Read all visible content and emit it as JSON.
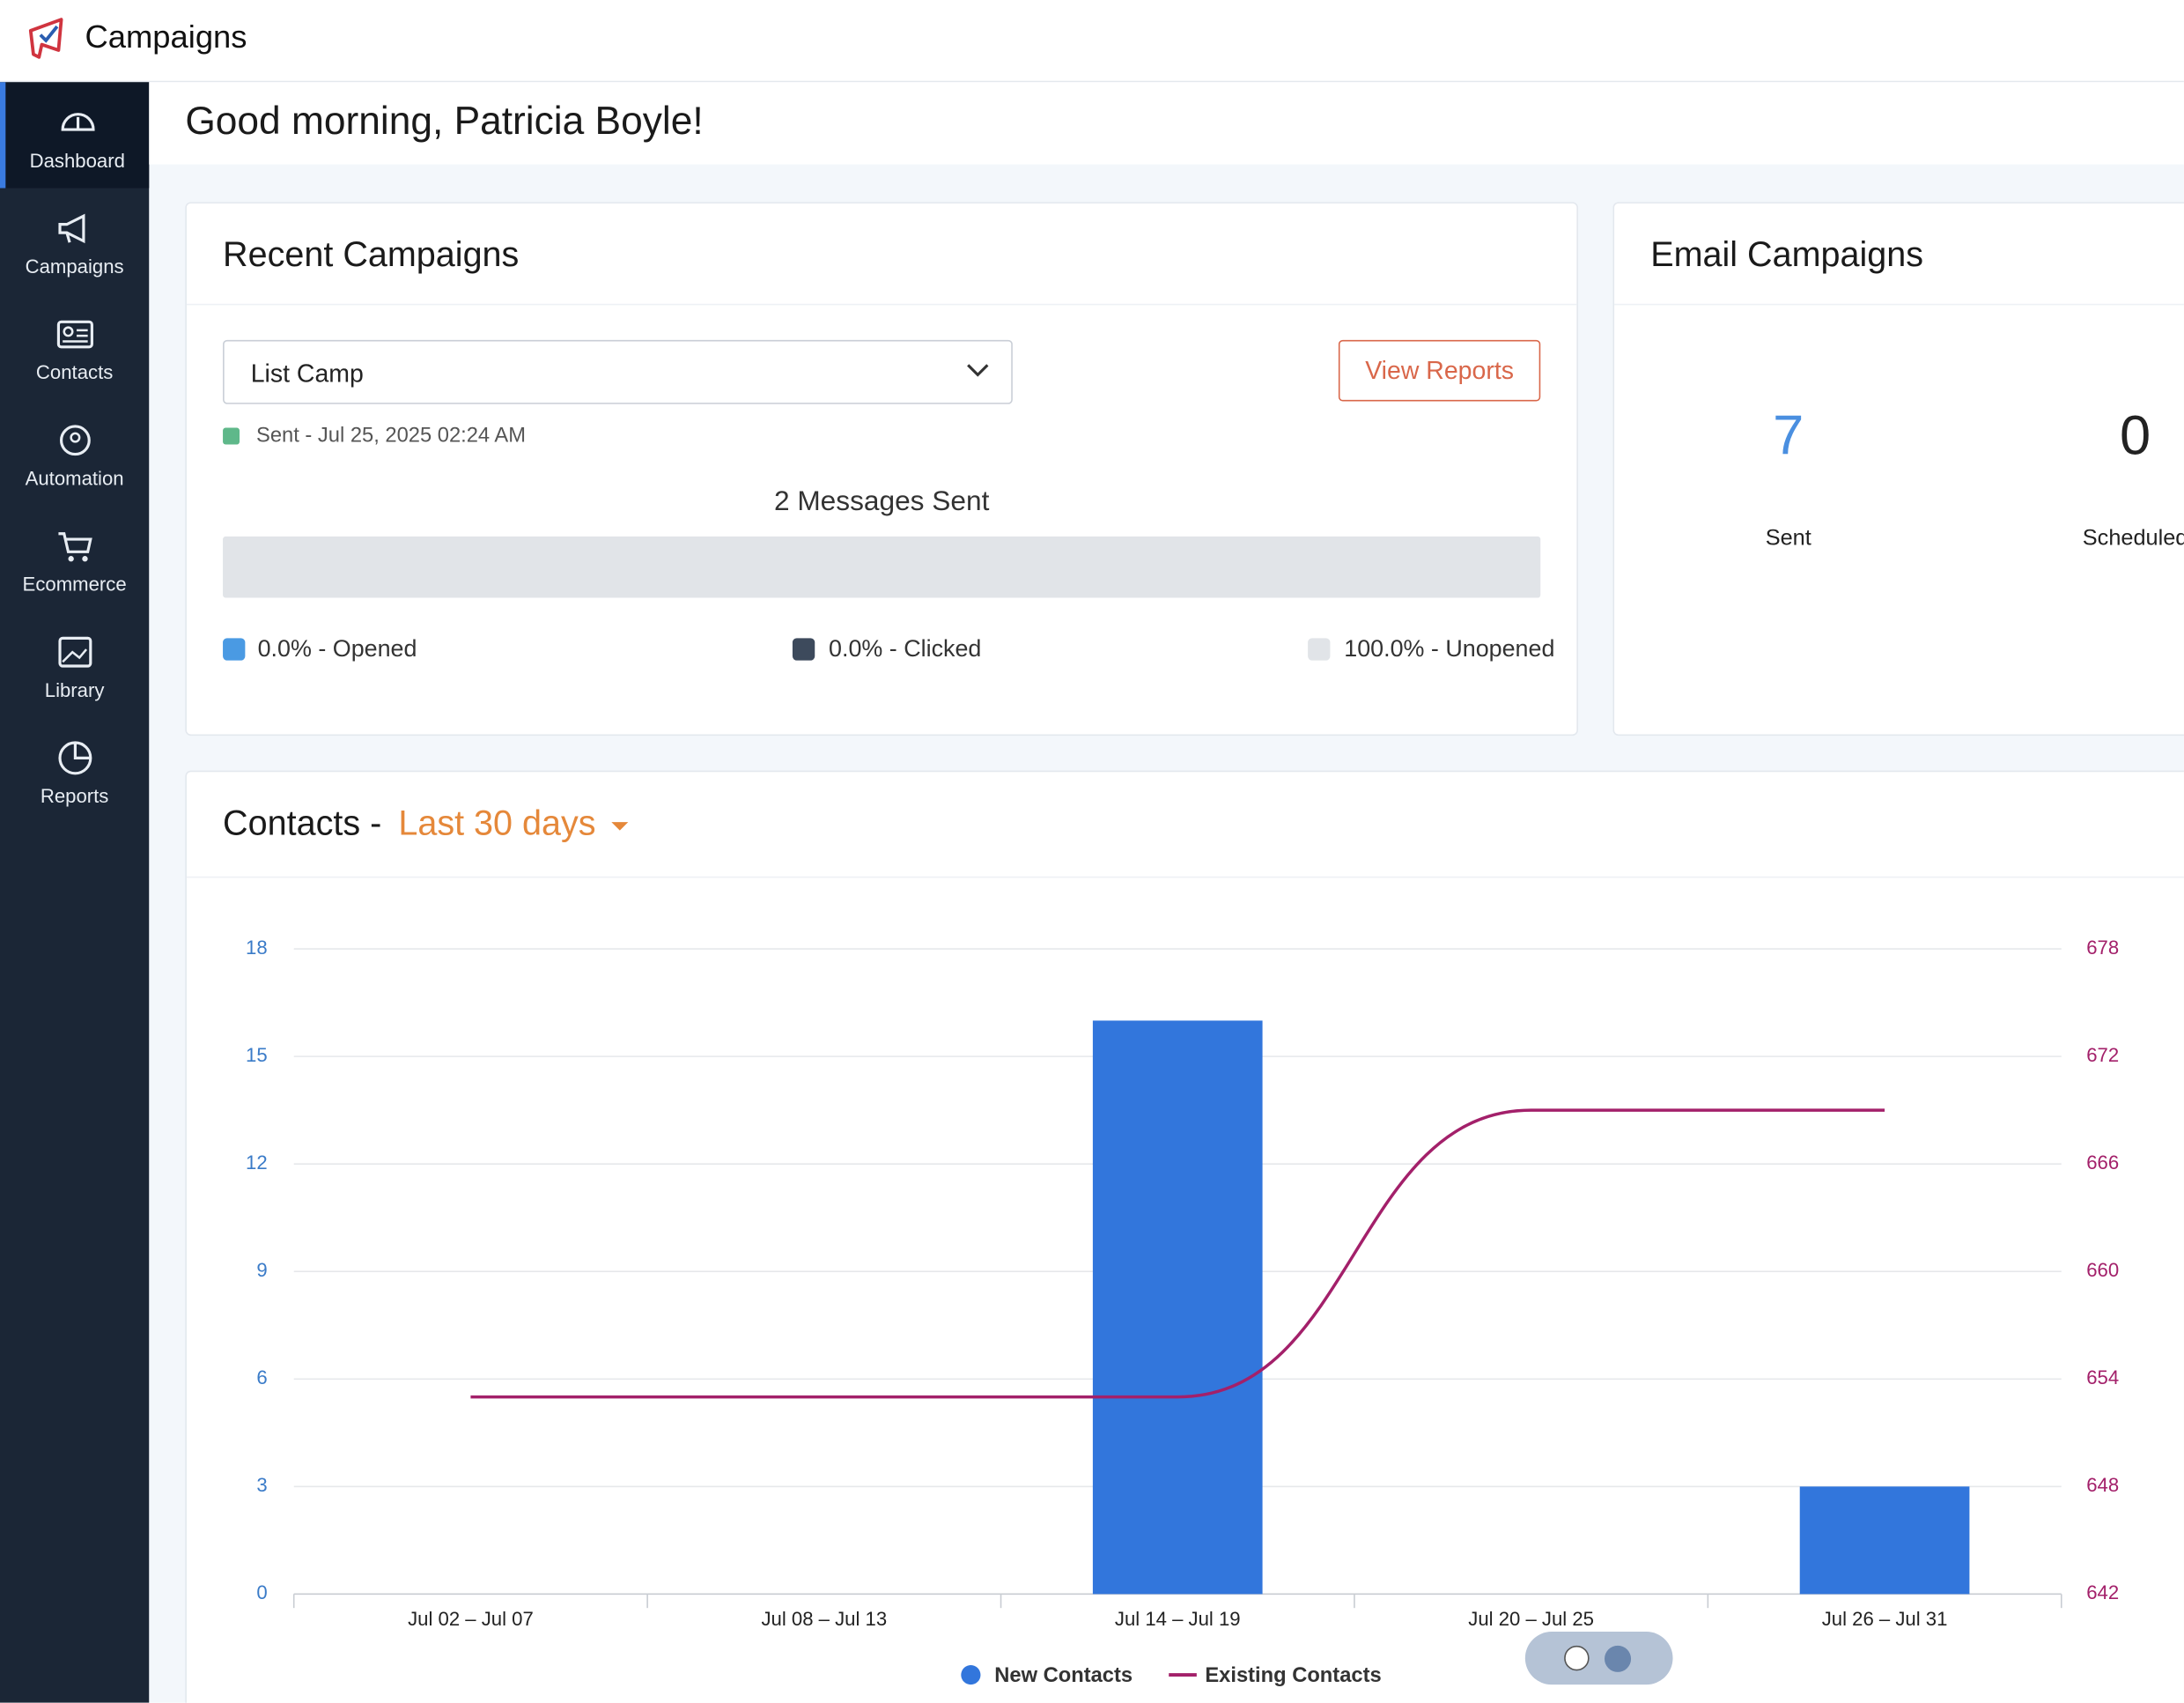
{
  "app": {
    "title": "Campaigns"
  },
  "nav": [
    "Dashboard",
    "Campaigns",
    "Contacts",
    "Automation",
    "Ecommerce",
    "Library",
    "Reports"
  ],
  "greeting": "Good morning, Patricia Boyle!",
  "recent": {
    "title": "Recent Campaigns",
    "dropdown": "List Camp",
    "button": "View Reports",
    "status": "Sent - Jul 25, 2025 02:24 AM",
    "summary": "2 Messages Sent",
    "legend": [
      "0.0% - Opened",
      "0.0% - Clicked",
      "100.0% - Unopened"
    ]
  },
  "email": {
    "title": "Email Campaigns",
    "stats": [
      {
        "value": "7",
        "label": "Sent"
      },
      {
        "value": "0",
        "label": "Scheduled"
      }
    ]
  },
  "contacts": {
    "title": "Contacts -",
    "range": "Last 30 days"
  },
  "chart_data": {
    "type": "combo",
    "categories": [
      "Jul 02 – Jul 07",
      "Jul 08 – Jul 13",
      "Jul 14 – Jul 19",
      "Jul 20 – Jul 25",
      "Jul 26 – Jul 31"
    ],
    "series": [
      {
        "name": "New Contacts",
        "type": "bar",
        "color": "#3276dc",
        "values": [
          0,
          0,
          16,
          0,
          3
        ]
      },
      {
        "name": "Existing Contacts",
        "type": "line",
        "axis": "y2",
        "color": "#a3206a",
        "values": [
          653,
          653,
          653,
          669,
          669
        ]
      }
    ],
    "ylim": [
      0,
      18
    ],
    "yticks": [
      0,
      3,
      6,
      9,
      12,
      15,
      18
    ],
    "y2lim": [
      642,
      678
    ],
    "y2ticks": [
      642,
      648,
      654,
      660,
      666,
      672,
      678
    ],
    "grid": true,
    "legend": "bottom"
  }
}
